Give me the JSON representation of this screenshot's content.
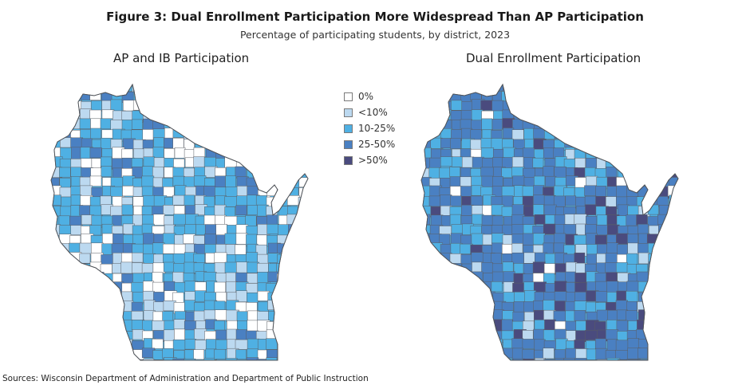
{
  "figure": {
    "title": "Figure 3: Dual Enrollment Participation More Widespread Than AP Participation",
    "subtitle": "Percentage of participating students, by district, 2023",
    "source": "Sources: Wisconsin Department of Administration and Department of Public Instruction"
  },
  "legend": [
    {
      "label": "0%",
      "color": "#ffffff"
    },
    {
      "label": "<10%",
      "color": "#bcd9f0"
    },
    {
      "label": "10-25%",
      "color": "#4fb0e3"
    },
    {
      "label": "25-50%",
      "color": "#4a80c2"
    },
    {
      "label": ">50%",
      "color": "#4a4b7e"
    }
  ],
  "maps": {
    "ap": {
      "title": "AP and IB Participation",
      "weights": [
        0.2,
        0.25,
        0.42,
        0.13,
        0.0
      ]
    },
    "de": {
      "title": "Dual Enrollment Participation",
      "weights": [
        0.03,
        0.08,
        0.24,
        0.52,
        0.13
      ]
    }
  }
}
